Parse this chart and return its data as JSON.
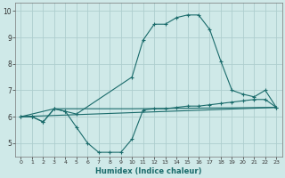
{
  "xlabel": "Humidex (Indice chaleur)",
  "xlim": [
    -0.5,
    23.5
  ],
  "ylim": [
    4.5,
    10.3
  ],
  "yticks": [
    5,
    6,
    7,
    8,
    9,
    10
  ],
  "xticks": [
    0,
    1,
    2,
    3,
    4,
    5,
    6,
    7,
    8,
    9,
    10,
    11,
    12,
    13,
    14,
    15,
    16,
    17,
    18,
    19,
    20,
    21,
    22,
    23
  ],
  "bg_color": "#cfe9e8",
  "grid_color": "#aecece",
  "line_color": "#1a6b6b",
  "line1_x": [
    0,
    1,
    2,
    3,
    4,
    5,
    6,
    7,
    8,
    9,
    10,
    11,
    12,
    13,
    14,
    15,
    16,
    17,
    18,
    19,
    20,
    21,
    22,
    23
  ],
  "line1_y": [
    6.0,
    6.0,
    5.8,
    6.3,
    6.2,
    5.6,
    5.0,
    4.65,
    4.65,
    4.65,
    5.15,
    6.25,
    6.3,
    6.3,
    6.35,
    6.4,
    6.4,
    6.45,
    6.5,
    6.55,
    6.6,
    6.65,
    6.65,
    6.35
  ],
  "line2_x": [
    0,
    1,
    2,
    3,
    4,
    5,
    10,
    11,
    12,
    13,
    14,
    15,
    16,
    17,
    18,
    19,
    20,
    21,
    22,
    23
  ],
  "line2_y": [
    6.0,
    6.0,
    5.8,
    6.3,
    6.2,
    6.1,
    7.5,
    8.9,
    9.5,
    9.5,
    9.75,
    9.85,
    9.85,
    9.3,
    8.1,
    7.0,
    6.85,
    6.75,
    7.0,
    6.35
  ],
  "line3_x": [
    0,
    23
  ],
  "line3_y": [
    6.0,
    6.35
  ],
  "line4_x": [
    0,
    3,
    10,
    23
  ],
  "line4_y": [
    6.0,
    6.3,
    6.3,
    6.35
  ]
}
